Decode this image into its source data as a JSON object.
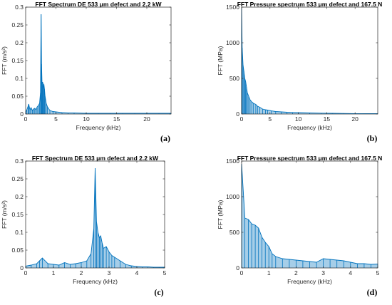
{
  "chart_data": [
    {
      "id": "a",
      "type": "line",
      "title": "FFT Spectrum DE 533 μm defect and 2.2 kW",
      "xlabel": "Frequency (kHz)",
      "ylabel": "FFT (m/s²)",
      "panel_label": "(a)",
      "xlim": [
        0,
        24
      ],
      "ylim": [
        0,
        0.3
      ],
      "xticks": [
        0,
        5,
        10,
        15,
        20
      ],
      "yticks": [
        0,
        0.05,
        0.1,
        0.15,
        0.2,
        0.25,
        0.3
      ],
      "ytick_labels": [
        "0",
        "0.05",
        "0.1",
        "0.15",
        "0.2",
        "0.25",
        "0.3"
      ],
      "color": "#0072BD",
      "grid": false,
      "x": [
        0.0,
        0.2,
        0.4,
        0.5,
        0.7,
        0.9,
        1.1,
        1.3,
        1.5,
        1.7,
        1.9,
        2.1,
        2.3,
        2.45,
        2.55,
        2.62,
        2.7,
        2.8,
        2.9,
        3.0,
        3.1,
        3.2,
        3.4,
        3.6,
        4.0,
        4.5,
        5.0,
        6.0,
        7.0,
        8.0,
        10.0,
        12.0,
        14.0,
        16.0,
        18.0,
        20.0,
        22.0,
        24.0
      ],
      "y": [
        0.005,
        0.012,
        0.022,
        0.028,
        0.012,
        0.018,
        0.01,
        0.014,
        0.016,
        0.012,
        0.02,
        0.024,
        0.03,
        0.06,
        0.28,
        0.14,
        0.085,
        0.09,
        0.07,
        0.085,
        0.07,
        0.05,
        0.03,
        0.02,
        0.01,
        0.007,
        0.006,
        0.004,
        0.003,
        0.003,
        0.002,
        0.002,
        0.002,
        0.002,
        0.002,
        0.002,
        0.002,
        0.002
      ]
    },
    {
      "id": "b",
      "type": "line",
      "title": "FFT Pressure spectrum 533 μm defect and 167.5 N",
      "xlabel": "Frequency (kHz)",
      "ylabel": "FFT (MPa)",
      "panel_label": "(b)",
      "xlim": [
        0,
        24
      ],
      "ylim": [
        0,
        1500
      ],
      "xticks": [
        0,
        5,
        10,
        15,
        20
      ],
      "yticks": [
        0,
        500,
        1000,
        1500
      ],
      "ytick_labels": [
        "0",
        "500",
        "1000",
        "1500"
      ],
      "color": "#0072BD",
      "grid": false,
      "x": [
        0.0,
        0.1,
        0.25,
        0.4,
        0.55,
        0.7,
        0.85,
        1.0,
        1.25,
        1.5,
        1.8,
        2.1,
        2.5,
        2.8,
        3.2,
        3.7,
        4.2,
        4.6,
        5.2,
        6.0,
        7.0,
        8.0,
        9.0,
        10.0,
        12.0,
        14.0,
        16.0,
        18.0,
        20.0,
        22.0,
        24.0
      ],
      "y": [
        1480,
        930,
        690,
        600,
        500,
        460,
        380,
        300,
        250,
        200,
        170,
        150,
        135,
        110,
        95,
        70,
        60,
        55,
        45,
        35,
        30,
        25,
        22,
        20,
        15,
        12,
        10,
        8,
        6,
        5,
        5
      ]
    },
    {
      "id": "c",
      "type": "line",
      "title": "FFT Spectrum DE 533 μm defect and 2.2 kW",
      "xlabel": "Frequency (kHz)",
      "ylabel": "FFT (m/s²)",
      "panel_label": "(c)",
      "xlim": [
        0,
        5
      ],
      "ylim": [
        0,
        0.3
      ],
      "xticks": [
        0,
        1,
        2,
        3,
        4,
        5
      ],
      "yticks": [
        0,
        0.05,
        0.1,
        0.15,
        0.2,
        0.25,
        0.3
      ],
      "ytick_labels": [
        "0",
        "0.05",
        "0.1",
        "0.15",
        "0.2",
        "0.25",
        "0.3"
      ],
      "color": "#0072BD",
      "grid": false,
      "x": [
        0.0,
        0.2,
        0.4,
        0.5,
        0.6,
        0.8,
        1.0,
        1.2,
        1.4,
        1.6,
        1.8,
        2.0,
        2.2,
        2.35,
        2.45,
        2.5,
        2.55,
        2.6,
        2.65,
        2.7,
        2.75,
        2.8,
        2.9,
        3.0,
        3.1,
        3.2,
        3.4,
        3.6,
        3.8,
        4.0,
        4.2,
        4.4,
        4.6,
        4.8,
        5.0
      ],
      "y": [
        0.005,
        0.008,
        0.012,
        0.02,
        0.028,
        0.012,
        0.01,
        0.008,
        0.015,
        0.01,
        0.012,
        0.015,
        0.02,
        0.04,
        0.11,
        0.28,
        0.13,
        0.1,
        0.085,
        0.09,
        0.07,
        0.055,
        0.06,
        0.045,
        0.035,
        0.03,
        0.02,
        0.01,
        0.006,
        0.004,
        0.003,
        0.003,
        0.002,
        0.002,
        0.002
      ]
    },
    {
      "id": "d",
      "type": "line",
      "title": "FFT Pressure spectrum 533 μm defect and 167.5 N",
      "xlabel": "Frequency (kHz)",
      "ylabel": "FFT (MPa)",
      "panel_label": "(d)",
      "xlim": [
        0,
        5
      ],
      "ylim": [
        0,
        1500
      ],
      "xticks": [
        0,
        1,
        2,
        3,
        4,
        5
      ],
      "yticks": [
        0,
        500,
        1000,
        1500
      ],
      "ytick_labels": [
        "0",
        "500",
        "1000",
        "1500"
      ],
      "color": "#0072BD",
      "grid": false,
      "x": [
        0.0,
        0.12,
        0.25,
        0.37,
        0.5,
        0.62,
        0.75,
        0.87,
        1.0,
        1.12,
        1.25,
        1.5,
        1.75,
        2.0,
        2.25,
        2.5,
        2.75,
        3.0,
        3.25,
        3.5,
        3.75,
        4.0,
        4.25,
        4.5,
        4.75,
        5.0
      ],
      "y": [
        1460,
        700,
        680,
        620,
        600,
        560,
        430,
        360,
        300,
        200,
        160,
        130,
        120,
        110,
        100,
        90,
        80,
        130,
        120,
        110,
        100,
        80,
        60,
        60,
        50,
        55
      ]
    }
  ]
}
